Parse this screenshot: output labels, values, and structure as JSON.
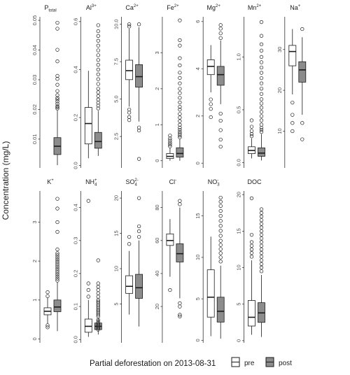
{
  "figure": {
    "ylabel": "Concentration (mg/L)",
    "legend": {
      "title": "Partial deforestation on 2013-08-31",
      "items": [
        {
          "label": "pre",
          "color": "#ffffff"
        },
        {
          "label": "post",
          "color": "#8c8c8c"
        }
      ]
    }
  },
  "chart_data": [
    {
      "type": "box",
      "title_base": "P",
      "title_sub": "total",
      "title_sup": "",
      "ticks": [
        0.01,
        0.02,
        0.03,
        0.04,
        0.05
      ],
      "ylim": [
        0.0003,
        0.0512
      ],
      "pre": null,
      "post": {
        "q1": 0.0048,
        "median": 0.0076,
        "q3": 0.0105,
        "lower": 0.0012,
        "upper": 0.0196,
        "outliers": [
          0.0203,
          0.0207,
          0.0211,
          0.0219,
          0.0227,
          0.0234,
          0.0239,
          0.0248,
          0.0262,
          0.0283,
          0.0303,
          0.0313,
          0.0362,
          0.0401,
          0.0472,
          0.0492
        ]
      }
    },
    {
      "type": "box",
      "title_base": "Al",
      "title_sub": "",
      "title_sup": "3+",
      "ticks": [
        0.0,
        0.2,
        0.4,
        0.6
      ],
      "ylim": [
        -0.01,
        0.62
      ],
      "pre": {
        "q1": 0.09,
        "median": 0.175,
        "q3": 0.242,
        "lower": 0.03,
        "upper": 0.395,
        "outliers": []
      },
      "post": {
        "q1": 0.072,
        "median": 0.1,
        "q3": 0.138,
        "lower": 0.04,
        "upper": 0.228,
        "outliers": [
          0.238,
          0.25,
          0.262,
          0.275,
          0.29,
          0.305,
          0.32,
          0.34,
          0.36,
          0.38,
          0.4,
          0.42,
          0.44,
          0.46,
          0.48,
          0.5,
          0.52,
          0.54,
          0.56,
          0.585
        ]
      }
    },
    {
      "type": "box",
      "title_base": "Ca",
      "title_sub": "",
      "title_sup": "2+",
      "ticks": [
        2.5,
        5.0,
        7.5,
        10.0
      ],
      "ylim": [
        0.4,
        10.5
      ],
      "pre": {
        "q1": 6.3,
        "median": 6.9,
        "q3": 7.6,
        "lower": 4.5,
        "upper": 9.7,
        "outliers": [
          4.3,
          4.1,
          3.8,
          3.6,
          9.85,
          10.0
        ]
      },
      "post": {
        "q1": 5.8,
        "median": 6.5,
        "q3": 7.3,
        "lower": 3.5,
        "upper": 9.8,
        "outliers": [
          3.1,
          2.9,
          1.0,
          10.0
        ]
      }
    },
    {
      "type": "box",
      "title_base": "Fe",
      "title_sub": "",
      "title_sup": "2+",
      "ticks": [
        0,
        1,
        2,
        3
      ],
      "ylim": [
        -0.2,
        4.0
      ],
      "pre": {
        "q1": 0.06,
        "median": 0.12,
        "q3": 0.2,
        "lower": 0.0,
        "upper": 0.35,
        "outliers": [
          0.4,
          0.45,
          0.5,
          0.56,
          0.62,
          0.7
        ]
      },
      "post": {
        "q1": 0.1,
        "median": 0.2,
        "q3": 0.36,
        "lower": 0.0,
        "upper": 0.6,
        "outliers": [
          0.65,
          0.7,
          0.75,
          0.8,
          0.86,
          0.92,
          1.0,
          1.1,
          1.2,
          1.3,
          1.42,
          1.5,
          1.62,
          1.75,
          1.88,
          2.0,
          2.15,
          2.3,
          2.45,
          2.65,
          2.85,
          3.2,
          3.35,
          3.9
        ]
      }
    },
    {
      "type": "box",
      "title_base": "Mg",
      "title_sub": "",
      "title_sup": "2+",
      "ticks": [
        0,
        2,
        4,
        6
      ],
      "ylim": [
        -0.2,
        6.2
      ],
      "pre": {
        "q1": 3.75,
        "median": 4.1,
        "q3": 4.38,
        "lower": 3.0,
        "upper": 5.0,
        "outliers": [
          2.7,
          2.5,
          2.3,
          1.95
        ]
      },
      "post": {
        "q1": 3.3,
        "median": 3.75,
        "q3": 4.1,
        "lower": 2.5,
        "upper": 5.2,
        "outliers": [
          2.1,
          1.8,
          1.4,
          1.0,
          0.7,
          5.3,
          5.5,
          5.7,
          5.85
        ]
      }
    },
    {
      "type": "box",
      "title_base": "Mn",
      "title_sub": "",
      "title_sup": "2+",
      "ticks": [
        0.0,
        0.5,
        1.0
      ],
      "ylim": [
        -0.05,
        1.38
      ],
      "pre": {
        "q1": 0.085,
        "median": 0.115,
        "q3": 0.15,
        "lower": 0.04,
        "upper": 0.23,
        "outliers": [
          0.25,
          0.27,
          0.3,
          0.34,
          0.4
        ]
      },
      "post": {
        "q1": 0.06,
        "median": 0.09,
        "q3": 0.14,
        "lower": 0.02,
        "upper": 0.27,
        "outliers": [
          0.29,
          0.31,
          0.33,
          0.36,
          0.4,
          0.44,
          0.48,
          0.52,
          0.56,
          0.6,
          0.65,
          0.7,
          0.75,
          0.8,
          0.85,
          0.9,
          0.95,
          1.0,
          1.06,
          1.12,
          1.2,
          1.33
        ]
      }
    },
    {
      "type": "box",
      "title_base": "Na",
      "title_sub": "",
      "title_sup": "+",
      "ticks": [
        10,
        20,
        30
      ],
      "ylim": [
        1,
        38
      ],
      "pre": {
        "q1": 26.0,
        "median": 29.5,
        "q3": 31.0,
        "lower": 19.0,
        "upper": 35.0,
        "outliers": [
          17.0,
          14.0,
          12.0,
          10.0
        ]
      },
      "post": {
        "q1": 22.0,
        "median": 25.0,
        "q3": 27.0,
        "lower": 14.0,
        "upper": 33.0,
        "outliers": [
          12.0,
          8.0,
          35.0
        ]
      }
    },
    {
      "type": "box",
      "title_base": "K",
      "title_sub": "",
      "title_sup": "+",
      "ticks": [
        0,
        1,
        2,
        3
      ],
      "ylim": [
        -0.1,
        3.8
      ],
      "pre": {
        "q1": 0.62,
        "median": 0.71,
        "q3": 0.8,
        "lower": 0.4,
        "upper": 1.05,
        "outliers": [
          0.3,
          0.35,
          1.1,
          1.2
        ]
      },
      "post": {
        "q1": 0.7,
        "median": 0.82,
        "q3": 1.0,
        "lower": 0.2,
        "upper": 1.45,
        "outliers": [
          1.5,
          1.55,
          1.6,
          1.65,
          1.7,
          1.75,
          1.8,
          1.85,
          1.9,
          1.95,
          2.0,
          2.05,
          2.1,
          2.15,
          2.2,
          2.3,
          2.75,
          3.0,
          3.35,
          3.6
        ]
      }
    },
    {
      "type": "box",
      "title_base": "NH",
      "title_sub": "4",
      "title_sup": "+",
      "ticks": [
        0.0,
        0.1,
        0.2,
        0.3,
        0.4
      ],
      "ylim": [
        -0.01,
        0.45
      ],
      "pre": {
        "q1": 0.022,
        "median": 0.04,
        "q3": 0.062,
        "lower": 0.008,
        "upper": 0.12,
        "outliers": [
          0.13,
          0.15,
          0.17,
          0.42
        ]
      },
      "post": {
        "q1": 0.03,
        "median": 0.04,
        "q3": 0.05,
        "lower": 0.015,
        "upper": 0.065,
        "outliers": [
          0.03,
          0.035,
          0.04,
          0.045,
          0.05,
          0.055,
          0.06,
          0.07,
          0.075,
          0.08,
          0.085,
          0.09,
          0.095,
          0.1,
          0.105,
          0.11,
          0.115,
          0.12,
          0.13,
          0.14,
          0.15,
          0.16,
          0.17,
          0.24
        ]
      }
    },
    {
      "type": "box",
      "title_base": "SO",
      "title_sub": "4",
      "title_sup": "2-",
      "ticks": [
        5,
        10,
        15,
        20
      ],
      "ylim": [
        -0.5,
        21
      ],
      "pre": {
        "q1": 6.5,
        "median": 7.5,
        "q3": 9.0,
        "lower": 3.5,
        "upper": 12.5,
        "outliers": [
          13.5,
          14.5
        ]
      },
      "post": {
        "q1": 5.8,
        "median": 7.3,
        "q3": 9.2,
        "lower": 1.8,
        "upper": 14.0,
        "outliers": [
          14.5,
          15.3,
          16.0,
          20.0
        ]
      }
    },
    {
      "type": "box",
      "title_base": "Cl",
      "title_sub": "",
      "title_sup": "-",
      "ticks": [
        20,
        40,
        60,
        80
      ],
      "ylim": [
        -2,
        90
      ],
      "pre": {
        "q1": 57.0,
        "median": 60.0,
        "q3": 64.0,
        "lower": 38.0,
        "upper": 73.0,
        "outliers": [
          30.0
        ]
      },
      "post": {
        "q1": 47.0,
        "median": 52.0,
        "q3": 58.0,
        "lower": 25.0,
        "upper": 80.0,
        "outliers": [
          22.0,
          20.0,
          15.0,
          14.0,
          82.0,
          84.0
        ]
      }
    },
    {
      "type": "box",
      "title_base": "NO",
      "title_sub": "3",
      "title_sup": "-",
      "ticks": [
        0,
        5,
        10,
        15
      ],
      "ylim": [
        -0.3,
        18
      ],
      "pre": {
        "q1": 2.8,
        "median": 5.2,
        "q3": 8.5,
        "lower": 0.5,
        "upper": 12.5,
        "outliers": []
      },
      "post": {
        "q1": 2.2,
        "median": 3.5,
        "q3": 5.2,
        "lower": 0.2,
        "upper": 9.0,
        "outliers": [
          9.5,
          10.0,
          10.5,
          11.0,
          11.5,
          12.0,
          12.6,
          13.2,
          13.8,
          14.4,
          15.0,
          15.6,
          16.2,
          16.7,
          17.2
        ]
      }
    },
    {
      "type": "box",
      "title_base": "DOC",
      "title_sub": "",
      "title_sup": "",
      "ticks": [
        0,
        5,
        10,
        15,
        20
      ],
      "ylim": [
        -0.3,
        20.5
      ],
      "pre": {
        "q1": 2.0,
        "median": 3.2,
        "q3": 5.5,
        "lower": 0.8,
        "upper": 11.0,
        "outliers": [
          11.5,
          12.0,
          12.5,
          13.0,
          13.5,
          14.5,
          19.5
        ]
      },
      "post": {
        "q1": 2.5,
        "median": 3.8,
        "q3": 5.2,
        "lower": 0.5,
        "upper": 9.0,
        "outliers": [
          9.5,
          10.0,
          10.5,
          11.0,
          11.5,
          12.0,
          12.5,
          13.0,
          13.5,
          14.0,
          14.5,
          15.0,
          15.5,
          16.0,
          16.5,
          17.0,
          17.5,
          18.0
        ]
      }
    }
  ]
}
